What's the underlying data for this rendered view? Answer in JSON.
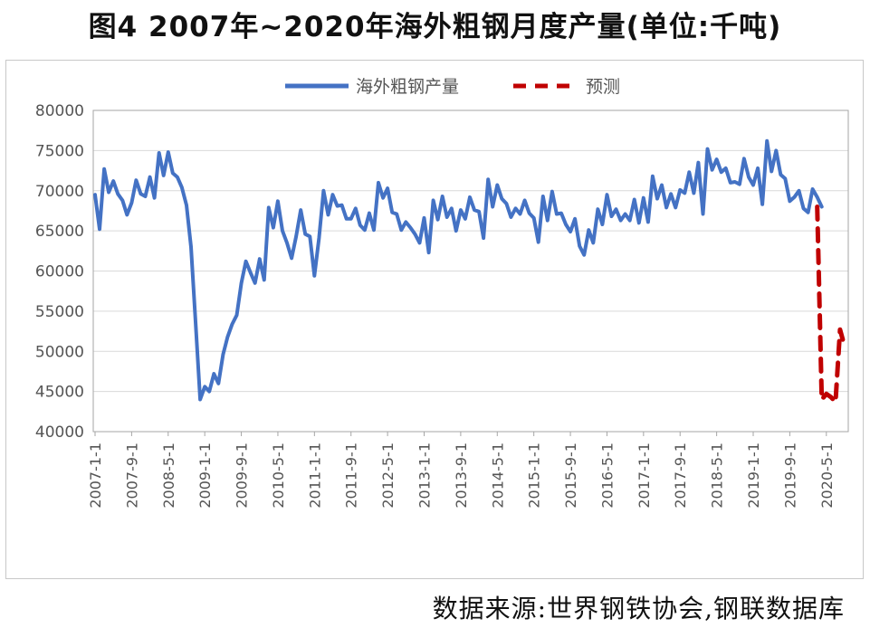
{
  "title": "图4  2007年~2020年海外粗钢月度产量(单位:千吨)",
  "source": "数据来源:世界钢铁协会,钢联数据库",
  "chart_data": {
    "type": "line",
    "title": "图4  2007年~2020年海外粗钢月度产量(单位:千吨)",
    "xlabel": "",
    "ylabel": "",
    "ylim": [
      40000,
      80000
    ],
    "yticks": [
      40000,
      45000,
      50000,
      55000,
      60000,
      65000,
      70000,
      75000,
      80000
    ],
    "xticks": [
      "2007-1-1",
      "2007-9-1",
      "2008-5-1",
      "2009-1-1",
      "2009-9-1",
      "2010-5-1",
      "2011-1-1",
      "2011-9-1",
      "2012-5-1",
      "2013-1-1",
      "2013-9-1",
      "2014-5-1",
      "2015-1-1",
      "2015-9-1",
      "2016-5-1",
      "2017-1-1",
      "2017-9-1",
      "2018-5-1",
      "2019-1-1",
      "2019-9-1",
      "2020-5-1"
    ],
    "grid": true,
    "legend": "top-center",
    "x_start": "2007-01",
    "series": [
      {
        "name": "海外粗钢产量",
        "color": "#4472c4",
        "style": "solid",
        "values": [
          69500,
          65200,
          72700,
          69800,
          71200,
          69600,
          68800,
          67000,
          68500,
          71300,
          69600,
          69300,
          71700,
          69100,
          74700,
          71900,
          74800,
          72200,
          71700,
          70400,
          68200,
          63000,
          53500,
          44000,
          45600,
          45000,
          47200,
          46000,
          49600,
          51800,
          53400,
          54500,
          58500,
          61200,
          59800,
          58500,
          61500,
          58900,
          67900,
          65400,
          68700,
          65000,
          63500,
          61600,
          64300,
          67600,
          64600,
          64300,
          59400,
          64100,
          70000,
          67000,
          69500,
          68100,
          68200,
          66500,
          66500,
          67800,
          65700,
          65100,
          67200,
          65100,
          71000,
          69100,
          70300,
          67300,
          67100,
          65100,
          66100,
          65400,
          64600,
          63500,
          66600,
          62300,
          68800,
          66400,
          69300,
          66700,
          67800,
          65000,
          67600,
          66500,
          69200,
          67600,
          67400,
          64100,
          71400,
          68000,
          70700,
          69000,
          68400,
          66700,
          67800,
          67100,
          68800,
          67200,
          66600,
          63600,
          69300,
          66300,
          69900,
          67100,
          67200,
          65800,
          64900,
          66500,
          63100,
          62000,
          65100,
          63500,
          67700,
          65800,
          69500,
          66800,
          67700,
          66300,
          67100,
          66300,
          68900,
          66000,
          69100,
          66100,
          71800,
          69000,
          70700,
          67900,
          69600,
          67900,
          70100,
          69700,
          72300,
          69700,
          73500,
          67100,
          75200,
          72600,
          73900,
          72300,
          72800,
          71000,
          71100,
          70800,
          74000,
          71700,
          70700,
          72800,
          68300,
          76200,
          72400,
          75000,
          72000,
          71500,
          68700,
          69200,
          70000,
          67800,
          67300,
          70200,
          69200,
          68000
        ]
      },
      {
        "name": "预测",
        "color": "#c00000",
        "style": "dashed",
        "points": [
          [
            "2020-03",
            68000
          ],
          [
            "2020-04",
            44000
          ],
          [
            "2020-05",
            44700
          ],
          [
            "2020-06",
            44300
          ],
          [
            "2020-07",
            43700
          ],
          [
            "2020-08",
            52700
          ],
          [
            "2020-09",
            50600
          ]
        ]
      }
    ]
  }
}
